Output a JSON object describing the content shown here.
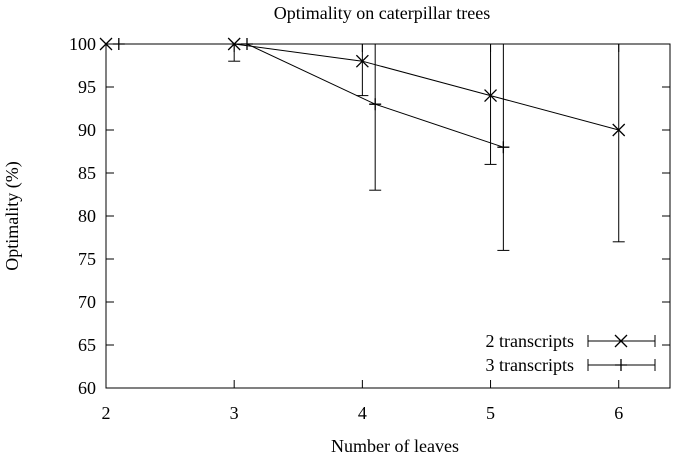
{
  "chart_data": {
    "type": "line",
    "title": "Optimality on caterpillar trees",
    "xlabel": "Number of leaves",
    "ylabel": "Optimality (%)",
    "xlim": [
      2,
      6.4
    ],
    "ylim": [
      60,
      100
    ],
    "x_ticks": [
      2,
      3,
      4,
      5,
      6
    ],
    "y_ticks": [
      60,
      65,
      70,
      75,
      80,
      85,
      90,
      95,
      100
    ],
    "grid": false,
    "legend_position": "bottom-right",
    "series": [
      {
        "name": "2 transcripts",
        "marker": "x",
        "points": [
          {
            "x": 2,
            "y": 100,
            "ylow": 100,
            "yhigh": 100
          },
          {
            "x": 3,
            "y": 100,
            "ylow": 98,
            "yhigh": 100
          },
          {
            "x": 4,
            "y": 98,
            "ylow": 94,
            "yhigh": 100
          },
          {
            "x": 5,
            "y": 94,
            "ylow": 86,
            "yhigh": 100
          },
          {
            "x": 6,
            "y": 90,
            "ylow": 77,
            "yhigh": 100
          }
        ]
      },
      {
        "name": "3 transcripts",
        "marker": "plus",
        "points": [
          {
            "x": 2.1,
            "y": 100,
            "ylow": 100,
            "yhigh": 100
          },
          {
            "x": 3.1,
            "y": 100,
            "ylow": 100,
            "yhigh": 100
          },
          {
            "x": 4.1,
            "y": 93,
            "ylow": 83,
            "yhigh": 100
          },
          {
            "x": 5.1,
            "y": 88,
            "ylow": 76,
            "yhigh": 100
          }
        ]
      }
    ]
  }
}
